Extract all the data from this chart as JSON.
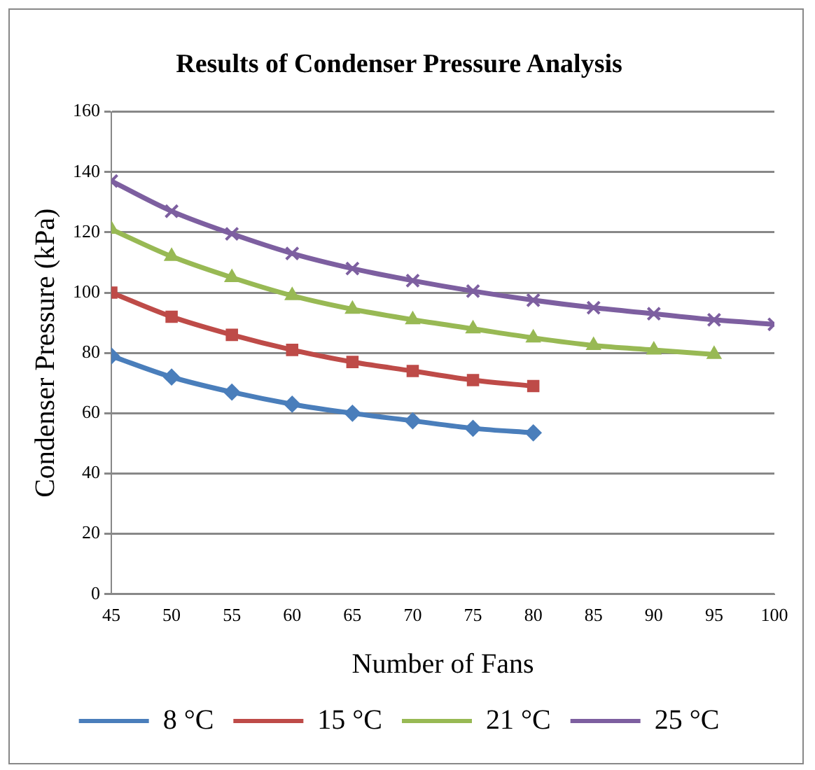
{
  "chart_data": {
    "type": "line",
    "title": "Results of Condenser Pressure Analysis",
    "xlabel": "Number of Fans",
    "ylabel": "Condenser Pressure (kPa)",
    "x": [
      45,
      50,
      55,
      60,
      65,
      70,
      75,
      80,
      85,
      90,
      95,
      100
    ],
    "series": [
      {
        "name": "8 °C",
        "color": "#4a7ebb",
        "marker": "diamond",
        "values": [
          79,
          72,
          67,
          63,
          60,
          57.5,
          55,
          53.5,
          null,
          null,
          null,
          null
        ]
      },
      {
        "name": "15 °C",
        "color": "#be4b48",
        "marker": "square",
        "values": [
          100,
          92,
          86,
          81,
          77,
          74,
          71,
          69,
          null,
          null,
          null,
          null
        ]
      },
      {
        "name": "21 °C",
        "color": "#98b954",
        "marker": "triangle",
        "values": [
          121,
          112,
          105,
          99,
          94.5,
          91,
          88,
          85,
          82.5,
          81,
          79.5,
          null
        ]
      },
      {
        "name": "25 °C",
        "color": "#7d5fa0",
        "marker": "cross",
        "values": [
          137,
          127,
          119.5,
          113,
          108,
          104,
          100.5,
          97.5,
          95,
          93,
          91,
          89.5
        ]
      }
    ],
    "xlim": [
      45,
      100
    ],
    "xticks": [
      45,
      50,
      55,
      60,
      65,
      70,
      75,
      80,
      85,
      90,
      95,
      100
    ],
    "ylim": [
      0,
      160
    ],
    "yticks": [
      0,
      20,
      40,
      60,
      80,
      100,
      120,
      140,
      160
    ],
    "grid": "y",
    "legend": "bottom"
  }
}
